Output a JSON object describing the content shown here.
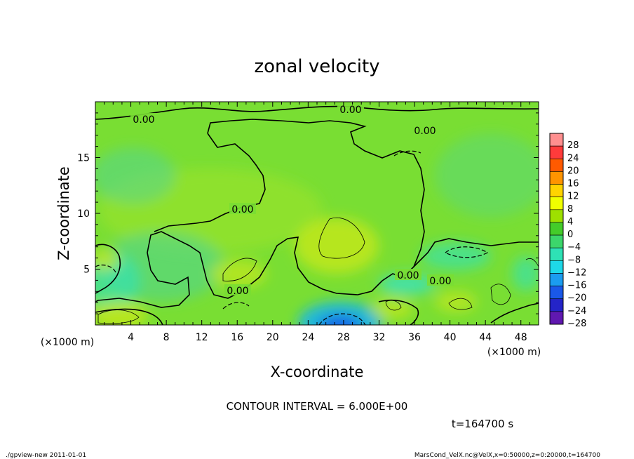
{
  "chart_data": {
    "type": "heatmap",
    "title": "zonal velocity",
    "xlabel": "X-coordinate",
    "ylabel": "Z-coordinate",
    "x_unit": "(×1000 m)",
    "y_unit": "(×1000 m)",
    "xlim": [
      0,
      50
    ],
    "ylim": [
      0,
      20
    ],
    "x_ticks": [
      "4",
      "8",
      "12",
      "16",
      "20",
      "24",
      "28",
      "32",
      "36",
      "40",
      "44",
      "48"
    ],
    "y_ticks": [
      "5",
      "10",
      "15"
    ],
    "colorbar_levels": [
      "28",
      "24",
      "20",
      "16",
      "12",
      "8",
      "4",
      "0",
      "−4",
      "−8",
      "−12",
      "−16",
      "−20",
      "−24",
      "−28"
    ],
    "colorbar_colors": [
      "#ff8f8f",
      "#ff3b3b",
      "#ff5a00",
      "#ff9400",
      "#ffd400",
      "#f0ff00",
      "#9ee000",
      "#44cc2a",
      "#3cd66b",
      "#2ee2b5",
      "#1ed8e8",
      "#1b9cf0",
      "#1a58e8",
      "#2424c8",
      "#6018b0"
    ],
    "contour_labels": [
      "0.00",
      "0.00",
      "0.00",
      "0.00",
      "0.00",
      "0.00",
      "0.00"
    ],
    "contour_interval": "CONTOUR INTERVAL = 6.000E+00",
    "time_label": "t=164700 s"
  },
  "footer": {
    "left": "./gpview-new   2011-01-01",
    "right": "MarsCond_VelX.nc@VelX,x=0:50000,z=0:20000,t=164700"
  }
}
